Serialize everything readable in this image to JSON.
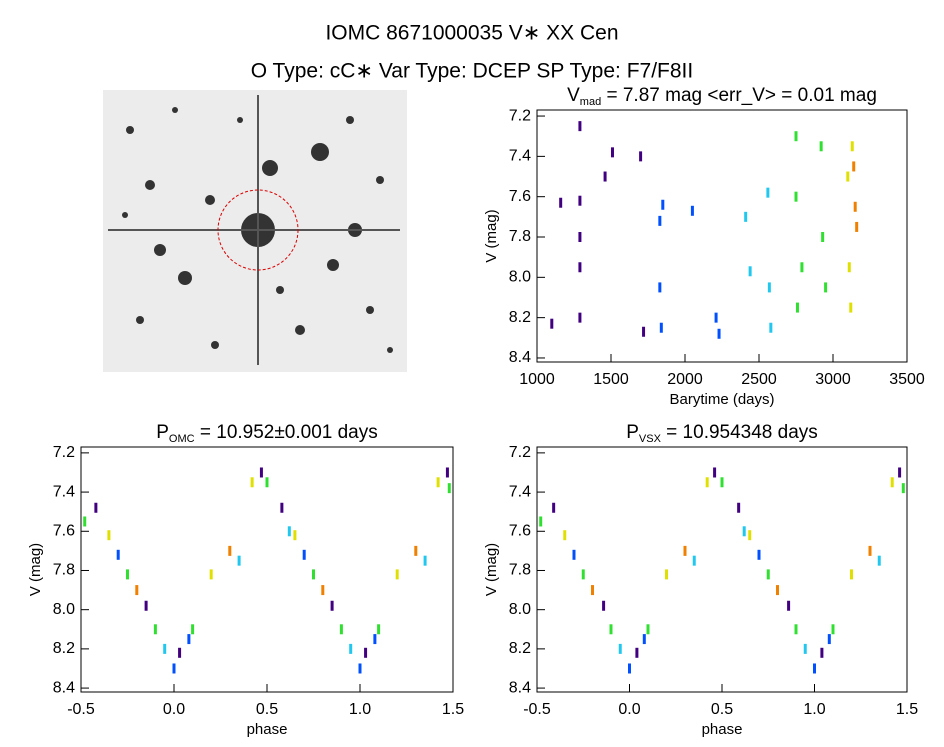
{
  "header": {
    "title": "IOMC 8671000035   V∗ XX Cen",
    "subtitle": "O Type: cC∗  Var Type: DCEP  SP Type: F7/F8II"
  },
  "chart_data": [
    {
      "type": "scatter",
      "title": [
        "V",
        "mad",
        " = 7.87 mag <err_V> = 0.01 mag"
      ],
      "xlabel": "Barytime (days)",
      "ylabel": "V (mag)",
      "xlim": [
        1000,
        3500
      ],
      "xticks": [
        1000,
        1500,
        2000,
        2500,
        3000,
        3500
      ],
      "ylim": [
        8.42,
        7.17
      ],
      "yticks": [
        7.2,
        7.4,
        7.6,
        7.8,
        {
          "value": 8,
          "label": "8.0"
        },
        8.2,
        8.4
      ],
      "series": [
        {
          "color": "#400080",
          "x": [
            1100,
            1160,
            1290,
            1290,
            1290,
            1290,
            1290,
            1460,
            1510,
            1700,
            1720
          ],
          "y": [
            8.23,
            7.63,
            7.25,
            7.62,
            7.95,
            8.2,
            7.8,
            7.5,
            7.38,
            7.4,
            8.27
          ]
        },
        {
          "color": "#0050ff",
          "x": [
            1830,
            1830,
            1840,
            1850,
            2050,
            2210,
            2230
          ],
          "y": [
            7.72,
            8.05,
            8.25,
            7.64,
            7.67,
            8.2,
            8.28
          ]
        },
        {
          "color": "#20c8f0",
          "x": [
            2410,
            2440,
            2560,
            2570,
            2580
          ],
          "y": [
            7.7,
            7.97,
            7.58,
            8.05,
            8.25
          ]
        },
        {
          "color": "#30e030",
          "x": [
            2750,
            2750,
            2760,
            2790,
            2920,
            2930,
            2950
          ],
          "y": [
            7.3,
            7.6,
            8.15,
            7.95,
            7.35,
            7.8,
            8.05
          ]
        },
        {
          "color": "#e0e000",
          "x": [
            3100,
            3110,
            3120,
            3130
          ],
          "y": [
            7.5,
            7.95,
            8.15,
            7.35
          ]
        },
        {
          "color": "#f08000",
          "x": [
            3140,
            3150,
            3160
          ],
          "y": [
            7.45,
            7.65,
            7.75
          ]
        }
      ]
    },
    {
      "type": "scatter",
      "title": [
        "P",
        "OMC",
        " = 10.952±0.001 days"
      ],
      "xlabel": "phase",
      "ylabel": "V (mag)",
      "xlim": [
        -0.5,
        1.5
      ],
      "xticks": [
        -0.5,
        {
          "value": 0,
          "label": "0.0"
        },
        0.5,
        {
          "value": 1,
          "label": "1.0"
        },
        1.5
      ],
      "ylim": [
        8.42,
        7.17
      ],
      "yticks": [
        7.2,
        7.4,
        7.6,
        7.8,
        {
          "value": 8,
          "label": "8.0"
        },
        8.2,
        8.4
      ],
      "series": [
        {
          "color": "#400080",
          "x": [
            -0.42,
            -0.15,
            0.03,
            0.47,
            0.58,
            0.85,
            1.03,
            1.47
          ],
          "y": [
            7.48,
            7.98,
            8.22,
            7.3,
            7.48,
            7.98,
            8.22,
            7.3
          ]
        },
        {
          "color": "#0050ff",
          "x": [
            -0.3,
            0.0,
            0.08,
            0.7,
            1.0,
            1.08
          ],
          "y": [
            7.72,
            8.3,
            8.15,
            7.72,
            8.3,
            8.15
          ]
        },
        {
          "color": "#20c8f0",
          "x": [
            -0.05,
            0.35,
            0.62,
            0.95,
            1.35
          ],
          "y": [
            8.2,
            7.75,
            7.6,
            8.2,
            7.75
          ]
        },
        {
          "color": "#30e030",
          "x": [
            -0.48,
            -0.25,
            -0.1,
            0.1,
            0.5,
            0.75,
            0.9,
            1.1,
            1.48
          ],
          "y": [
            7.55,
            7.82,
            8.1,
            8.1,
            7.35,
            7.82,
            8.1,
            8.1,
            7.38
          ]
        },
        {
          "color": "#e0e000",
          "x": [
            -0.35,
            0.2,
            0.42,
            0.65,
            1.2,
            1.42
          ],
          "y": [
            7.62,
            7.82,
            7.35,
            7.62,
            7.82,
            7.35
          ]
        },
        {
          "color": "#f08000",
          "x": [
            -0.2,
            0.3,
            0.8,
            1.3
          ],
          "y": [
            7.9,
            7.7,
            7.9,
            7.7
          ]
        }
      ]
    },
    {
      "type": "scatter",
      "title": [
        "P",
        "VSX",
        " = 10.954348 days"
      ],
      "xlabel": "phase",
      "ylabel": "V (mag)",
      "xlim": [
        -0.5,
        1.5
      ],
      "xticks": [
        -0.5,
        {
          "value": 0,
          "label": "0.0"
        },
        0.5,
        {
          "value": 1,
          "label": "1.0"
        },
        1.5
      ],
      "ylim": [
        8.42,
        7.17
      ],
      "yticks": [
        7.2,
        7.4,
        7.6,
        7.8,
        {
          "value": 8,
          "label": "8.0"
        },
        8.2,
        8.4
      ],
      "series": [
        {
          "color": "#400080",
          "x": [
            -0.41,
            -0.14,
            0.04,
            0.46,
            0.59,
            0.86,
            1.04,
            1.46
          ],
          "y": [
            7.48,
            7.98,
            8.22,
            7.3,
            7.48,
            7.98,
            8.22,
            7.3
          ]
        },
        {
          "color": "#0050ff",
          "x": [
            -0.3,
            0.0,
            0.08,
            0.7,
            1.0,
            1.08
          ],
          "y": [
            7.72,
            8.3,
            8.15,
            7.72,
            8.3,
            8.15
          ]
        },
        {
          "color": "#20c8f0",
          "x": [
            -0.05,
            0.35,
            0.62,
            0.95,
            1.35
          ],
          "y": [
            8.2,
            7.75,
            7.6,
            8.2,
            7.75
          ]
        },
        {
          "color": "#30e030",
          "x": [
            -0.48,
            -0.25,
            -0.1,
            0.1,
            0.5,
            0.75,
            0.9,
            1.1,
            1.48
          ],
          "y": [
            7.55,
            7.82,
            8.1,
            8.1,
            7.35,
            7.82,
            8.1,
            8.1,
            7.38
          ]
        },
        {
          "color": "#e0e000",
          "x": [
            -0.35,
            0.2,
            0.42,
            0.65,
            1.2,
            1.42
          ],
          "y": [
            7.62,
            7.82,
            7.35,
            7.62,
            7.82,
            7.35
          ]
        },
        {
          "color": "#f08000",
          "x": [
            -0.2,
            0.3,
            0.8,
            1.3
          ],
          "y": [
            7.9,
            7.7,
            7.9,
            7.7
          ]
        }
      ]
    }
  ]
}
